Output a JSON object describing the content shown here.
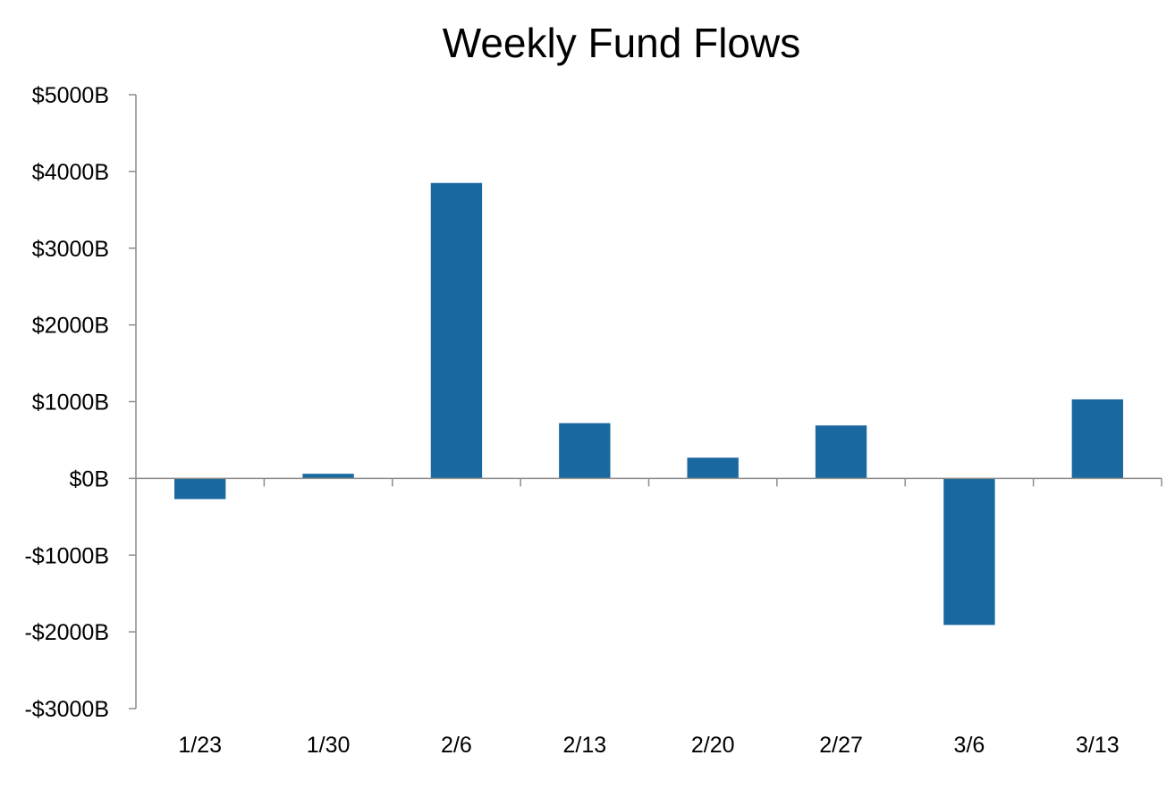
{
  "chart_data": {
    "type": "bar",
    "title": "Weekly Fund Flows",
    "xlabel": "",
    "ylabel": "",
    "categories": [
      "1/23",
      "1/30",
      "2/6",
      "2/13",
      "2/20",
      "2/27",
      "3/6",
      "3/13"
    ],
    "values": [
      -270,
      60,
      3850,
      720,
      270,
      690,
      -1910,
      1030
    ],
    "ylim": [
      -3000,
      5000
    ],
    "yticks": [
      5000,
      4000,
      3000,
      2000,
      1000,
      0,
      -1000,
      -2000,
      -3000
    ],
    "ytick_labels": [
      "$5000B",
      "$4000B",
      "$3000B",
      "$2000B",
      "$1000B",
      "$0B",
      "-$1000B",
      "-$2000B",
      "-$3000B"
    ],
    "grid": false,
    "legend": "none",
    "bar_color": "#1a68a0"
  }
}
